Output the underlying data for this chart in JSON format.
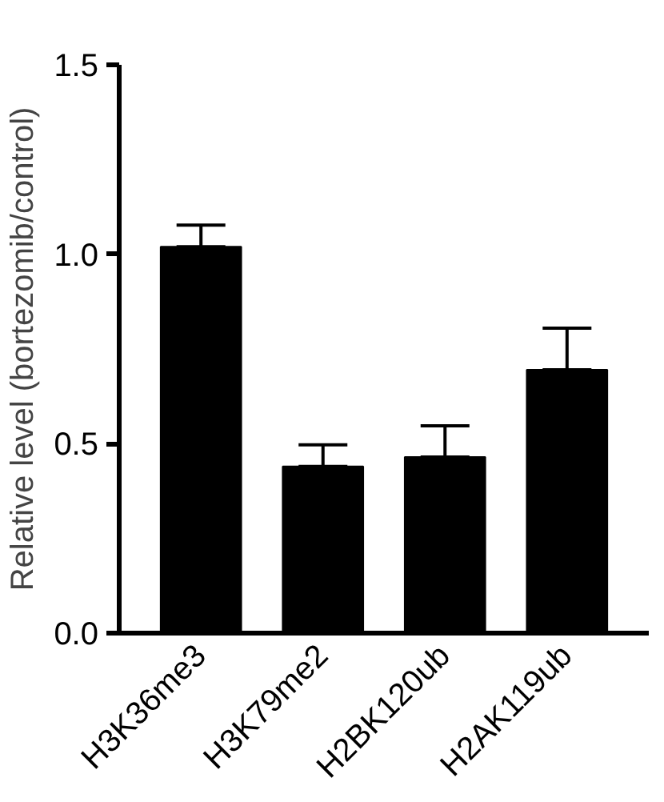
{
  "chart_data": {
    "type": "bar",
    "ylabel": "Relative level (bortezomib/control)",
    "categories": [
      "H3K36me3",
      "H3K79me2",
      "H2BK120ub",
      "H2AK119ub"
    ],
    "values": [
      1.02,
      0.44,
      0.465,
      0.695
    ],
    "errors": [
      [
        1.02,
        1.077
      ],
      [
        0.44,
        0.497
      ],
      [
        0.465,
        0.547
      ],
      [
        0.695,
        0.805
      ]
    ],
    "color": "#000000",
    "ylim": [
      0,
      1.5
    ],
    "yticks": [
      {
        "value": 0,
        "label": "0.0"
      },
      {
        "value": 0.5,
        "label": "0.5"
      },
      {
        "value": 1,
        "label": "1.0"
      },
      {
        "value": 1.5,
        "label": "1.5"
      }
    ],
    "grid": false
  }
}
